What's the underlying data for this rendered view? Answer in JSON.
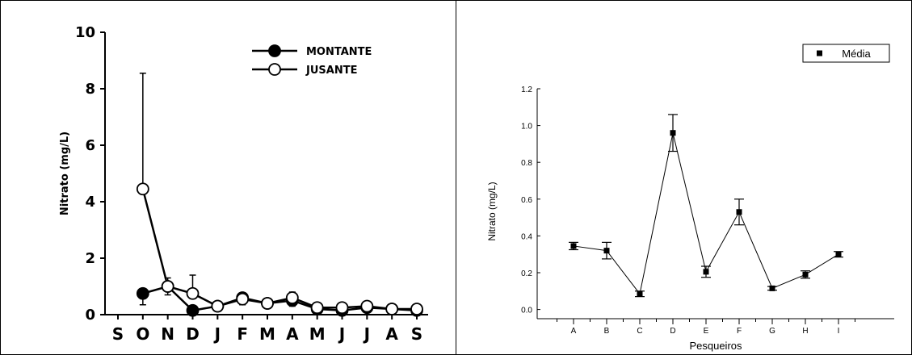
{
  "chart_data": [
    {
      "type": "line",
      "ylabel": "Nitrato (mg/L)",
      "ylim": [
        0,
        10
      ],
      "yticks": [
        "0",
        "2",
        "4",
        "6",
        "8",
        "10"
      ],
      "x": [
        "S",
        "O",
        "N",
        "D",
        "J",
        "F",
        "M",
        "A",
        "M",
        "J",
        "J",
        "A",
        "S"
      ],
      "legend_position": "top-right",
      "series": [
        {
          "name": "MONTANTE",
          "marker": "filled-circle",
          "values": [
            null,
            0.75,
            1.0,
            0.15,
            0.3,
            0.6,
            0.4,
            0.5,
            0.2,
            0.15,
            0.25,
            0.2,
            0.15
          ],
          "error": [
            null,
            0.4,
            0.3,
            0.1,
            null,
            0.25,
            null,
            0.2,
            null,
            null,
            null,
            null,
            null
          ]
        },
        {
          "name": "JUSANTE",
          "marker": "open-circle",
          "values": [
            null,
            4.45,
            1.0,
            0.75,
            0.3,
            0.55,
            0.4,
            0.6,
            0.25,
            0.25,
            0.3,
            0.2,
            0.2
          ],
          "error": [
            null,
            4.1,
            0.3,
            0.65,
            null,
            0.2,
            null,
            0.2,
            null,
            null,
            null,
            null,
            null
          ]
        }
      ]
    },
    {
      "type": "line",
      "xlabel": "Pesqueiros",
      "ylabel": "Nitrato (mg/L)",
      "ylim": [
        -0.05,
        1.2
      ],
      "yticks": [
        "0.0",
        "0.2",
        "0.4",
        "0.6",
        "0.8",
        "1.0",
        "1.2"
      ],
      "categories": [
        "A",
        "B",
        "C",
        "D",
        "E",
        "F",
        "G",
        "H",
        "I"
      ],
      "legend_position": "top-right",
      "series": [
        {
          "name": "Média",
          "marker": "filled-square",
          "values": [
            0.345,
            0.32,
            0.085,
            0.96,
            0.205,
            0.53,
            0.115,
            0.19,
            0.3
          ],
          "error": [
            0.02,
            0.045,
            0.015,
            0.1,
            0.03,
            0.07,
            0.01,
            0.02,
            0.015
          ]
        }
      ]
    }
  ]
}
